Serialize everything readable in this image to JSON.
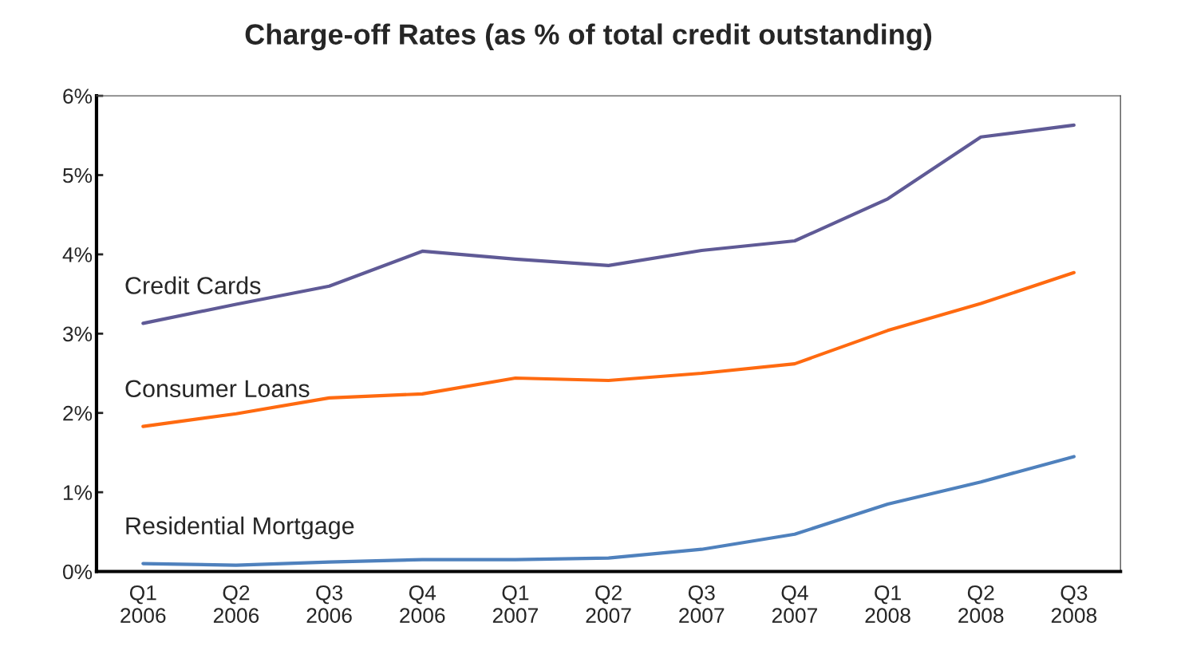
{
  "chart_data": {
    "type": "line",
    "title": "Charge-off Rates (as % of total credit outstanding)",
    "categories": [
      "Q1\n2006",
      "Q2\n2006",
      "Q3\n2006",
      "Q4\n2006",
      "Q1\n2007",
      "Q2\n2007",
      "Q3\n2007",
      "Q4\n2007",
      "Q1\n2008",
      "Q2\n2008",
      "Q3\n2008"
    ],
    "series": [
      {
        "name": "Credit Cards",
        "color": "#5f5a96",
        "values": [
          3.13,
          3.37,
          3.6,
          4.04,
          3.94,
          3.86,
          4.05,
          4.17,
          4.7,
          5.48,
          5.63
        ]
      },
      {
        "name": "Consumer Loans",
        "color": "#ff6a10",
        "values": [
          1.83,
          1.99,
          2.19,
          2.24,
          2.44,
          2.41,
          2.5,
          2.62,
          3.04,
          3.38,
          3.77
        ]
      },
      {
        "name": "Residential Mortgage",
        "color": "#4f81bd",
        "values": [
          0.1,
          0.08,
          0.12,
          0.15,
          0.15,
          0.17,
          0.28,
          0.47,
          0.85,
          1.13,
          1.45
        ]
      }
    ],
    "ylim": [
      0,
      6
    ],
    "yticks": [
      {
        "value": 0,
        "label": "0%"
      },
      {
        "value": 1,
        "label": "1%"
      },
      {
        "value": 2,
        "label": "2%"
      },
      {
        "value": 3,
        "label": "3%"
      },
      {
        "value": 4,
        "label": "4%"
      },
      {
        "value": 5,
        "label": "5%"
      },
      {
        "value": 6,
        "label": "6%"
      }
    ],
    "grid": false,
    "legend": false,
    "marker": "none",
    "line_style": "solid"
  }
}
